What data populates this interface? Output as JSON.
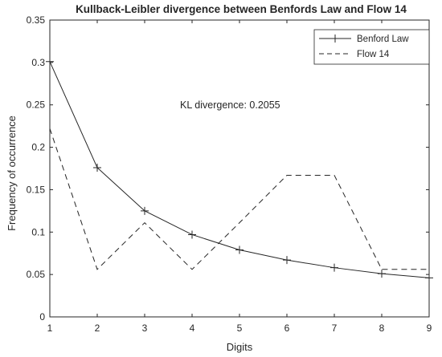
{
  "chart_data": {
    "type": "line",
    "title": "Kullback-Leibler divergence between Benfords Law and Flow 14",
    "xlabel": "Digits",
    "ylabel": "Frequency of occurrence",
    "xlim": [
      1,
      9
    ],
    "ylim": [
      0,
      0.35
    ],
    "x": [
      1,
      2,
      3,
      4,
      5,
      6,
      7,
      8,
      9
    ],
    "x_ticks": [
      "1",
      "2",
      "3",
      "4",
      "5",
      "6",
      "7",
      "8",
      "9"
    ],
    "y_ticks": [
      "0",
      "0.05",
      "0.1",
      "0.15",
      "0.2",
      "0.25",
      "0.3",
      "0.35"
    ],
    "legend_position": "top-right",
    "grid": false,
    "annotation": "KL divergence: 0.2055",
    "series": [
      {
        "name": "Benford Law",
        "style": "solid-plus-markers",
        "values": [
          0.301,
          0.176,
          0.125,
          0.097,
          0.079,
          0.067,
          0.058,
          0.051,
          0.046
        ]
      },
      {
        "name": "Flow 14",
        "style": "dashed",
        "values": [
          0.222,
          0.056,
          0.111,
          0.056,
          0.111,
          0.167,
          0.167,
          0.056,
          0.056
        ]
      }
    ]
  }
}
